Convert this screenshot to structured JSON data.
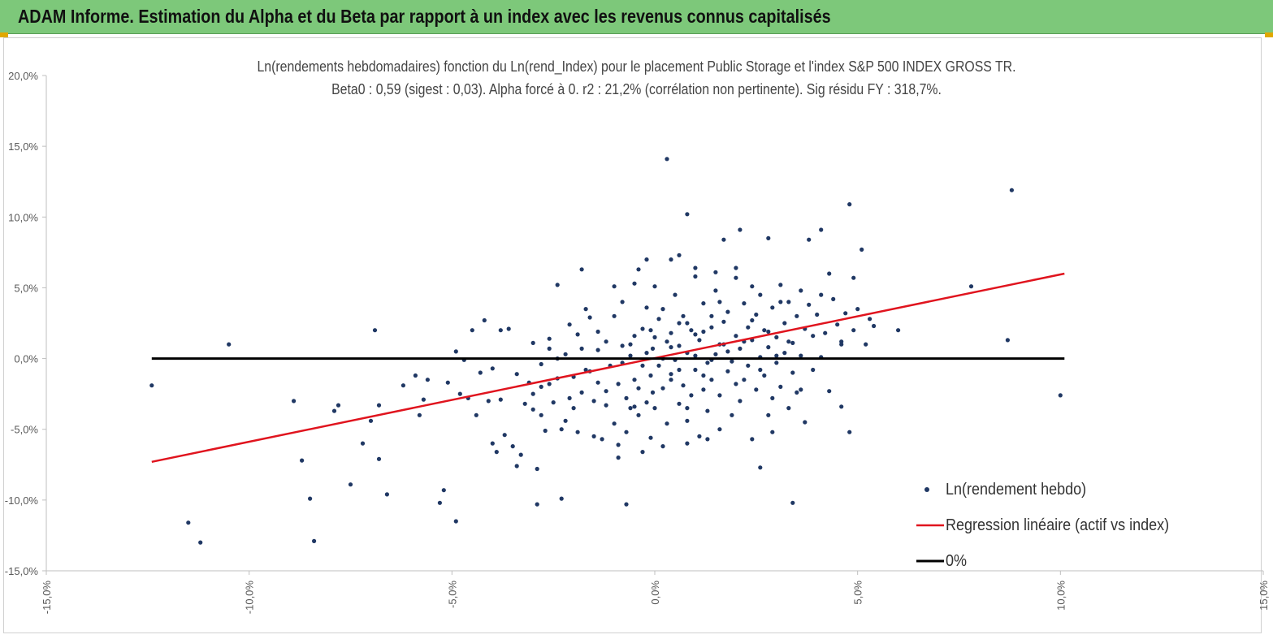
{
  "header": {
    "title": "ADAM Informe. Estimation du Alpha et du Beta par rapport à un index avec les revenus connus capitalisés"
  },
  "colors": {
    "header_bg": "#7dc87a",
    "points": "#203864",
    "regression": "#e0141e",
    "zero_line": "#000000"
  },
  "chart_data": {
    "type": "scatter",
    "title": "Ln(rendements hebdomadaires) fonction du Ln(rend_Index) pour le placement Public Storage et l'index S&P 500 INDEX GROSS TR.",
    "subtitle": "Beta0 : 0,59 (sigest : 0,03). Alpha forcé à 0. r2 : 21,2% (corrélation non pertinente). Sig résidu FY : 318,7%.",
    "xlabel": "",
    "ylabel": "",
    "xlim": [
      -0.15,
      0.15
    ],
    "ylim": [
      -0.15,
      0.2
    ],
    "x_ticks": [
      -0.15,
      -0.1,
      -0.05,
      0.0,
      0.05,
      0.1,
      0.15
    ],
    "x_tick_labels": [
      "-15,0%",
      "-10,0%",
      "-5,0%",
      "0,0%",
      "5,0%",
      "10,0%",
      "15,0%"
    ],
    "y_ticks": [
      -0.15,
      -0.1,
      -0.05,
      0.0,
      0.05,
      0.1,
      0.15,
      0.2
    ],
    "y_tick_labels": [
      "-15,0%",
      "-10,0%",
      "-5,0%",
      "0,0%",
      "5,0%",
      "10,0%",
      "15,0%",
      "20,0%"
    ],
    "grid": false,
    "legend_position": "bottom-right",
    "legend": [
      {
        "name": "Ln(rendement hebdo)",
        "marker": "dot"
      },
      {
        "name": "Regression linéaire (actif vs index)",
        "marker": "line"
      },
      {
        "name": "0%",
        "marker": "line"
      }
    ],
    "series": [
      {
        "name": "Ln(rendement hebdo)",
        "type": "scatter",
        "points": [
          [
            -0.124,
            -0.019
          ],
          [
            -0.115,
            -0.116
          ],
          [
            -0.112,
            -0.13
          ],
          [
            -0.105,
            0.01
          ],
          [
            -0.089,
            -0.03
          ],
          [
            -0.087,
            -0.072
          ],
          [
            -0.085,
            -0.099
          ],
          [
            -0.084,
            -0.129
          ],
          [
            -0.079,
            -0.037
          ],
          [
            -0.078,
            -0.033
          ],
          [
            -0.075,
            -0.089
          ],
          [
            -0.072,
            -0.06
          ],
          [
            -0.07,
            -0.044
          ],
          [
            -0.069,
            0.02
          ],
          [
            -0.068,
            -0.033
          ],
          [
            -0.068,
            -0.071
          ],
          [
            -0.066,
            -0.096
          ],
          [
            -0.062,
            -0.019
          ],
          [
            -0.059,
            -0.012
          ],
          [
            -0.058,
            -0.04
          ],
          [
            -0.056,
            -0.015
          ],
          [
            -0.057,
            -0.029
          ],
          [
            -0.053,
            -0.102
          ],
          [
            -0.052,
            -0.093
          ],
          [
            -0.051,
            -0.017
          ],
          [
            -0.049,
            0.005
          ],
          [
            -0.049,
            -0.115
          ],
          [
            -0.048,
            -0.025
          ],
          [
            -0.047,
            -0.001
          ],
          [
            -0.046,
            -0.028
          ],
          [
            -0.045,
            0.02
          ],
          [
            -0.044,
            -0.04
          ],
          [
            -0.043,
            -0.01
          ],
          [
            -0.042,
            0.027
          ],
          [
            -0.041,
            -0.03
          ],
          [
            -0.04,
            -0.007
          ],
          [
            -0.04,
            -0.06
          ],
          [
            -0.039,
            -0.066
          ],
          [
            -0.038,
            -0.029
          ],
          [
            -0.038,
            0.02
          ],
          [
            -0.037,
            -0.054
          ],
          [
            -0.036,
            0.021
          ],
          [
            -0.035,
            -0.062
          ],
          [
            -0.034,
            -0.011
          ],
          [
            -0.034,
            -0.076
          ],
          [
            -0.033,
            -0.068
          ],
          [
            -0.032,
            -0.032
          ],
          [
            -0.031,
            -0.017
          ],
          [
            -0.03,
            -0.036
          ],
          [
            -0.03,
            -0.025
          ],
          [
            -0.029,
            -0.078
          ],
          [
            -0.029,
            -0.103
          ],
          [
            -0.028,
            -0.02
          ],
          [
            -0.028,
            -0.04
          ],
          [
            -0.027,
            -0.051
          ],
          [
            -0.026,
            0.007
          ],
          [
            -0.026,
            -0.018
          ],
          [
            -0.025,
            -0.031
          ],
          [
            -0.024,
            0.052
          ],
          [
            -0.024,
            0.0
          ],
          [
            -0.023,
            -0.099
          ],
          [
            -0.023,
            -0.05
          ],
          [
            -0.022,
            -0.044
          ],
          [
            -0.021,
            0.024
          ],
          [
            -0.021,
            -0.028
          ],
          [
            -0.02,
            -0.013
          ],
          [
            -0.019,
            0.017
          ],
          [
            -0.019,
            -0.052
          ],
          [
            -0.018,
            -0.024
          ],
          [
            -0.017,
            0.035
          ],
          [
            -0.017,
            -0.008
          ],
          [
            -0.016,
            0.029
          ],
          [
            -0.015,
            -0.055
          ],
          [
            -0.015,
            -0.03
          ],
          [
            -0.014,
            0.006
          ],
          [
            -0.014,
            -0.017
          ],
          [
            -0.013,
            -0.057
          ],
          [
            -0.012,
            0.012
          ],
          [
            -0.012,
            -0.033
          ],
          [
            -0.011,
            -0.005
          ],
          [
            -0.01,
            0.03
          ],
          [
            -0.01,
            -0.046
          ],
          [
            -0.009,
            -0.061
          ],
          [
            -0.009,
            -0.018
          ],
          [
            -0.008,
            0.009
          ],
          [
            -0.008,
            0.04
          ],
          [
            -0.007,
            -0.028
          ],
          [
            -0.007,
            -0.052
          ],
          [
            -0.006,
            0.002
          ],
          [
            -0.006,
            -0.035
          ],
          [
            -0.005,
            0.016
          ],
          [
            -0.005,
            -0.015
          ],
          [
            -0.004,
            0.063
          ],
          [
            -0.004,
            -0.04
          ],
          [
            -0.003,
            -0.005
          ],
          [
            -0.003,
            0.021
          ],
          [
            -0.002,
            -0.031
          ],
          [
            -0.002,
            0.036
          ],
          [
            -0.001,
            -0.056
          ],
          [
            -0.001,
            -0.012
          ],
          [
            -0.0005,
            0.007
          ],
          [
            -0.0005,
            -0.024
          ],
          [
            0.0,
            0.051
          ],
          [
            0.0,
            -0.035
          ],
          [
            0.001,
            -0.005
          ],
          [
            0.001,
            0.028
          ],
          [
            0.002,
            -0.021
          ],
          [
            0.002,
            -0.062
          ],
          [
            0.003,
            0.012
          ],
          [
            0.003,
            -0.046
          ],
          [
            0.004,
            0.018
          ],
          [
            0.004,
            -0.011
          ],
          [
            0.005,
            0.045
          ],
          [
            0.005,
            -0.001
          ],
          [
            0.006,
            -0.032
          ],
          [
            0.006,
            0.009
          ],
          [
            0.007,
            -0.019
          ],
          [
            0.007,
            0.03
          ],
          [
            0.008,
            -0.044
          ],
          [
            0.008,
            0.004
          ],
          [
            0.009,
            0.02
          ],
          [
            0.009,
            -0.026
          ],
          [
            0.01,
            0.058
          ],
          [
            0.01,
            -0.008
          ],
          [
            0.011,
            -0.055
          ],
          [
            0.011,
            0.013
          ],
          [
            0.012,
            -0.022
          ],
          [
            0.012,
            0.039
          ],
          [
            0.013,
            -0.003
          ],
          [
            0.013,
            -0.037
          ],
          [
            0.014,
            0.022
          ],
          [
            0.014,
            -0.015
          ],
          [
            0.015,
            0.003
          ],
          [
            0.015,
            0.048
          ],
          [
            0.016,
            -0.05
          ],
          [
            0.016,
            -0.026
          ],
          [
            0.017,
            0.026
          ],
          [
            0.017,
            0.01
          ],
          [
            0.018,
            -0.009
          ],
          [
            0.018,
            0.033
          ],
          [
            0.019,
            -0.04
          ],
          [
            0.019,
            -0.002
          ],
          [
            0.02,
            0.016
          ],
          [
            0.02,
            0.057
          ],
          [
            0.021,
            -0.03
          ],
          [
            0.021,
            0.007
          ],
          [
            0.022,
            0.039
          ],
          [
            0.022,
            -0.015
          ],
          [
            0.023,
            0.022
          ],
          [
            0.023,
            -0.005
          ],
          [
            0.024,
            -0.057
          ],
          [
            0.024,
            0.013
          ],
          [
            0.025,
            0.031
          ],
          [
            0.025,
            -0.022
          ],
          [
            0.026,
            0.001
          ],
          [
            0.026,
            0.045
          ],
          [
            0.027,
            -0.012
          ],
          [
            0.027,
            0.02
          ],
          [
            0.028,
            -0.04
          ],
          [
            0.028,
            0.008
          ],
          [
            0.029,
            0.036
          ],
          [
            0.029,
            -0.028
          ],
          [
            0.03,
            0.015
          ],
          [
            0.03,
            -0.003
          ],
          [
            0.031,
            0.052
          ],
          [
            0.031,
            -0.02
          ],
          [
            0.032,
            0.025
          ],
          [
            0.032,
            0.004
          ],
          [
            0.033,
            -0.035
          ],
          [
            0.033,
            0.04
          ],
          [
            0.034,
            0.011
          ],
          [
            0.034,
            -0.01
          ],
          [
            0.035,
            0.03
          ],
          [
            0.035,
            -0.024
          ],
          [
            0.036,
            0.048
          ],
          [
            0.036,
            0.002
          ],
          [
            0.037,
            0.021
          ],
          [
            0.037,
            -0.045
          ],
          [
            0.038,
            0.038
          ],
          [
            0.039,
            0.016
          ],
          [
            0.039,
            -0.008
          ],
          [
            0.04,
            0.031
          ],
          [
            0.041,
            0.045
          ],
          [
            0.041,
            0.001
          ],
          [
            0.042,
            0.018
          ],
          [
            0.043,
            -0.023
          ],
          [
            0.044,
            0.042
          ],
          [
            0.045,
            0.024
          ],
          [
            0.046,
            -0.034
          ],
          [
            0.046,
            0.012
          ],
          [
            0.047,
            0.032
          ],
          [
            0.048,
            -0.052
          ],
          [
            0.049,
            0.02
          ],
          [
            0.05,
            0.035
          ],
          [
            0.051,
            0.077
          ],
          [
            0.052,
            0.01
          ],
          [
            0.053,
            0.028
          ],
          [
            0.054,
            0.023
          ],
          [
            0.06,
            0.02
          ],
          [
            0.041,
            0.091
          ],
          [
            0.048,
            0.109
          ],
          [
            0.049,
            0.057
          ],
          [
            0.043,
            0.06
          ],
          [
            0.038,
            0.084
          ],
          [
            0.046,
            0.01
          ],
          [
            0.078,
            0.051
          ],
          [
            0.087,
            0.013
          ],
          [
            0.088,
            0.119
          ],
          [
            0.1,
            -0.026
          ],
          [
            0.003,
            0.141
          ],
          [
            0.008,
            0.102
          ],
          [
            0.017,
            0.084
          ],
          [
            0.021,
            0.091
          ],
          [
            0.028,
            0.085
          ],
          [
            0.034,
            -0.102
          ],
          [
            0.026,
            -0.077
          ],
          [
            0.029,
            -0.052
          ],
          [
            -0.007,
            -0.103
          ],
          [
            -0.005,
            0.053
          ],
          [
            -0.002,
            0.07
          ],
          [
            0.004,
            0.07
          ],
          [
            0.006,
            0.073
          ],
          [
            -0.009,
            -0.07
          ],
          [
            -0.003,
            -0.066
          ],
          [
            0.008,
            -0.06
          ],
          [
            0.013,
            -0.057
          ],
          [
            0.024,
            0.051
          ],
          [
            -0.018,
            0.063
          ],
          [
            -0.01,
            0.051
          ],
          [
            0.031,
            0.04
          ],
          [
            0.036,
            -0.022
          ],
          [
            0.033,
            0.012
          ],
          [
            0.015,
            0.061
          ],
          [
            0.02,
            0.064
          ],
          [
            0.01,
            0.064
          ],
          [
            -0.005,
            -0.034
          ],
          [
            -0.001,
            0.02
          ],
          [
            0.002,
            0.035
          ],
          [
            0.004,
            -0.015
          ],
          [
            0.006,
            0.025
          ],
          [
            0.008,
            -0.035
          ],
          [
            0.01,
            0.017
          ],
          [
            0.012,
            -0.012
          ],
          [
            0.014,
            0.03
          ],
          [
            0.016,
            0.01
          ],
          [
            -0.012,
            -0.023
          ],
          [
            -0.014,
            0.019
          ],
          [
            -0.016,
            -0.009
          ],
          [
            -0.018,
            0.007
          ],
          [
            -0.02,
            -0.035
          ],
          [
            -0.022,
            0.003
          ],
          [
            -0.024,
            -0.014
          ],
          [
            -0.026,
            0.014
          ],
          [
            -0.028,
            -0.004
          ],
          [
            -0.03,
            0.011
          ],
          [
            -0.008,
            -0.003
          ],
          [
            -0.006,
            0.01
          ],
          [
            -0.004,
            -0.021
          ],
          [
            -0.002,
            0.004
          ],
          [
            0.0,
            0.015
          ],
          [
            0.002,
            0.0
          ],
          [
            0.004,
            0.008
          ],
          [
            0.006,
            -0.008
          ],
          [
            0.008,
            0.025
          ],
          [
            0.01,
            0.002
          ],
          [
            0.012,
            0.019
          ],
          [
            0.014,
            -0.001
          ],
          [
            0.016,
            0.04
          ],
          [
            0.018,
            0.005
          ],
          [
            0.02,
            -0.018
          ],
          [
            0.022,
            0.012
          ],
          [
            0.024,
            0.027
          ],
          [
            0.026,
            -0.008
          ],
          [
            0.028,
            0.019
          ],
          [
            0.03,
            0.002
          ]
        ]
      },
      {
        "name": "Regression linéaire (actif vs index)",
        "type": "line",
        "points": [
          [
            -0.124,
            -0.073
          ],
          [
            0.101,
            0.06
          ]
        ]
      },
      {
        "name": "0%",
        "type": "line",
        "points": [
          [
            -0.124,
            0.0
          ],
          [
            0.101,
            0.0
          ]
        ]
      }
    ]
  }
}
